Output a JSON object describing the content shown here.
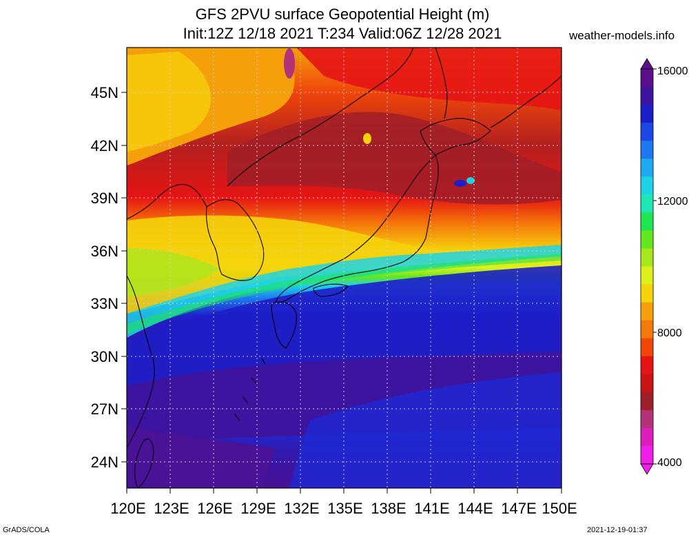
{
  "header": {
    "title_line1": "GFS 2PVU surface Geopotential Height (m)",
    "title_line2": "Init:12Z 12/18 2021 T:234 Valid:06Z 12/28 2021",
    "site": "weather-models.info"
  },
  "map": {
    "region": "Japan / East Asia",
    "lat_range": [
      22.5,
      47.5
    ],
    "lon_range": [
      120,
      150
    ],
    "lat_ticks": [
      "45N",
      "42N",
      "39N",
      "36N",
      "33N",
      "30N",
      "27N",
      "24N"
    ],
    "lon_ticks": [
      "120E",
      "123E",
      "126E",
      "129E",
      "132E",
      "135E",
      "138E",
      "141E",
      "144E",
      "147E",
      "150E"
    ],
    "gridlines": "dotted"
  },
  "colorbar": {
    "unit": "m",
    "range": [
      4000,
      16000
    ],
    "labels": [
      "16000",
      "12000",
      "8000",
      "4000"
    ],
    "colors": [
      "#5a0f8c",
      "#3c14a0",
      "#1e1ec8",
      "#1e46e6",
      "#1e78f0",
      "#1eaaf0",
      "#1ed2e6",
      "#1ee6b4",
      "#1ee650",
      "#64e61e",
      "#aae61e",
      "#dcf01e",
      "#f5d20a",
      "#f5a00a",
      "#f5780a",
      "#f0460a",
      "#e61414",
      "#c81414",
      "#a01e28",
      "#b43278",
      "#dc1ebe",
      "#f01ee6"
    ]
  },
  "footer": {
    "credit": "GrADS/COLA",
    "timestamp": "2021-12-19-01:37"
  }
}
